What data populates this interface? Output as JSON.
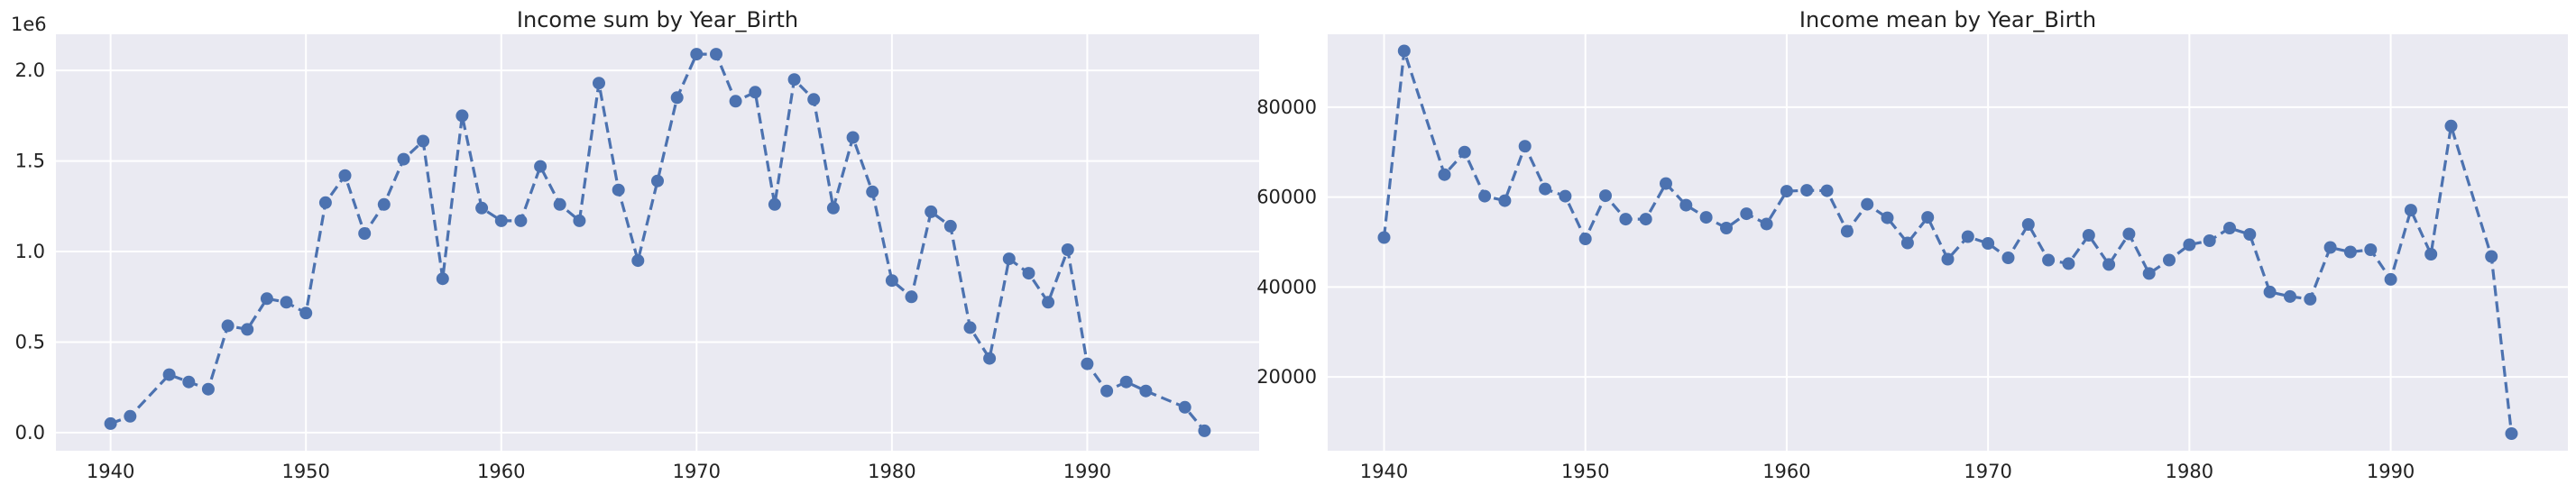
{
  "colors": {
    "series": "#4c72b0",
    "panel_bg": "#eaeaf2",
    "grid": "#ffffff"
  },
  "chart_data": [
    {
      "type": "line",
      "title": "Income sum by Year_Birth",
      "xlabel": "",
      "ylabel": "",
      "y_multiplier_label": "1e6",
      "grid": true,
      "xlim": [
        1937.2,
        1998.8
      ],
      "ylim": [
        -0.1,
        2.2
      ],
      "x_ticks": [
        1940,
        1950,
        1960,
        1970,
        1980,
        1990
      ],
      "x_tick_labels": [
        "1940",
        "1950",
        "1960",
        "1970",
        "1980",
        "1990"
      ],
      "y_ticks": [
        0,
        0.5,
        1.0,
        1.5,
        2.0
      ],
      "y_tick_labels": [
        "0.0",
        "0.5",
        "1.0",
        "1.5",
        "2.0"
      ],
      "series": [
        {
          "marker": "o",
          "linestyle": "dashed",
          "x": [
            1940,
            1941,
            1943,
            1944,
            1945,
            1946,
            1947,
            1948,
            1949,
            1950,
            1951,
            1952,
            1953,
            1954,
            1955,
            1956,
            1957,
            1958,
            1959,
            1960,
            1961,
            1962,
            1963,
            1964,
            1965,
            1966,
            1967,
            1968,
            1969,
            1970,
            1971,
            1972,
            1973,
            1974,
            1975,
            1976,
            1977,
            1978,
            1979,
            1980,
            1981,
            1982,
            1983,
            1984,
            1985,
            1986,
            1987,
            1988,
            1989,
            1990,
            1991,
            1992,
            1993,
            1995,
            1996
          ],
          "y": [
            0.05,
            0.09,
            0.32,
            0.28,
            0.24,
            0.59,
            0.57,
            0.74,
            0.72,
            0.66,
            1.27,
            1.42,
            1.1,
            1.26,
            1.51,
            1.61,
            0.85,
            1.75,
            1.24,
            1.17,
            1.17,
            1.47,
            1.26,
            1.17,
            1.93,
            1.34,
            0.95,
            1.39,
            1.85,
            2.09,
            2.09,
            1.83,
            1.88,
            1.26,
            1.95,
            1.84,
            1.24,
            1.63,
            1.33,
            0.84,
            0.75,
            1.22,
            1.14,
            0.58,
            0.41,
            0.96,
            0.88,
            0.72,
            1.01,
            0.38,
            0.23,
            0.28,
            0.23,
            0.14,
            0.01
          ]
        }
      ]
    },
    {
      "type": "line",
      "title": "Income mean by Year_Birth",
      "xlabel": "",
      "ylabel": "",
      "grid": true,
      "xlim": [
        1937.2,
        1998.8
      ],
      "ylim": [
        3600,
        96200
      ],
      "x_ticks": [
        1940,
        1950,
        1960,
        1970,
        1980,
        1990
      ],
      "x_tick_labels": [
        "1940",
        "1950",
        "1960",
        "1970",
        "1980",
        "1990"
      ],
      "y_ticks": [
        20000,
        40000,
        60000,
        80000
      ],
      "y_tick_labels": [
        "20000",
        "40000",
        "60000",
        "80000"
      ],
      "series": [
        {
          "marker": "o",
          "linestyle": "dashed",
          "x": [
            1940,
            1941,
            1943,
            1944,
            1945,
            1946,
            1947,
            1948,
            1949,
            1950,
            1951,
            1952,
            1953,
            1954,
            1955,
            1956,
            1957,
            1958,
            1959,
            1960,
            1961,
            1962,
            1963,
            1964,
            1965,
            1966,
            1967,
            1968,
            1969,
            1970,
            1971,
            1972,
            1973,
            1974,
            1975,
            1976,
            1977,
            1978,
            1979,
            1980,
            1981,
            1982,
            1983,
            1984,
            1985,
            1986,
            1987,
            1988,
            1989,
            1990,
            1991,
            1992,
            1993,
            1995,
            1996
          ],
          "y": [
            51000,
            92500,
            65000,
            70000,
            60200,
            59200,
            71300,
            61800,
            60200,
            50700,
            60300,
            55100,
            55100,
            63000,
            58200,
            55500,
            53100,
            56300,
            54000,
            61300,
            61500,
            61400,
            52400,
            58400,
            55400,
            49800,
            55500,
            46200,
            51200,
            49700,
            46500,
            53900,
            46000,
            45200,
            51500,
            45000,
            51800,
            43000,
            46000,
            49400,
            50300,
            53100,
            51700,
            38900,
            37900,
            37300,
            48800,
            47800,
            48300,
            41700,
            57100,
            47300,
            75800,
            46800,
            7400
          ]
        }
      ]
    }
  ]
}
